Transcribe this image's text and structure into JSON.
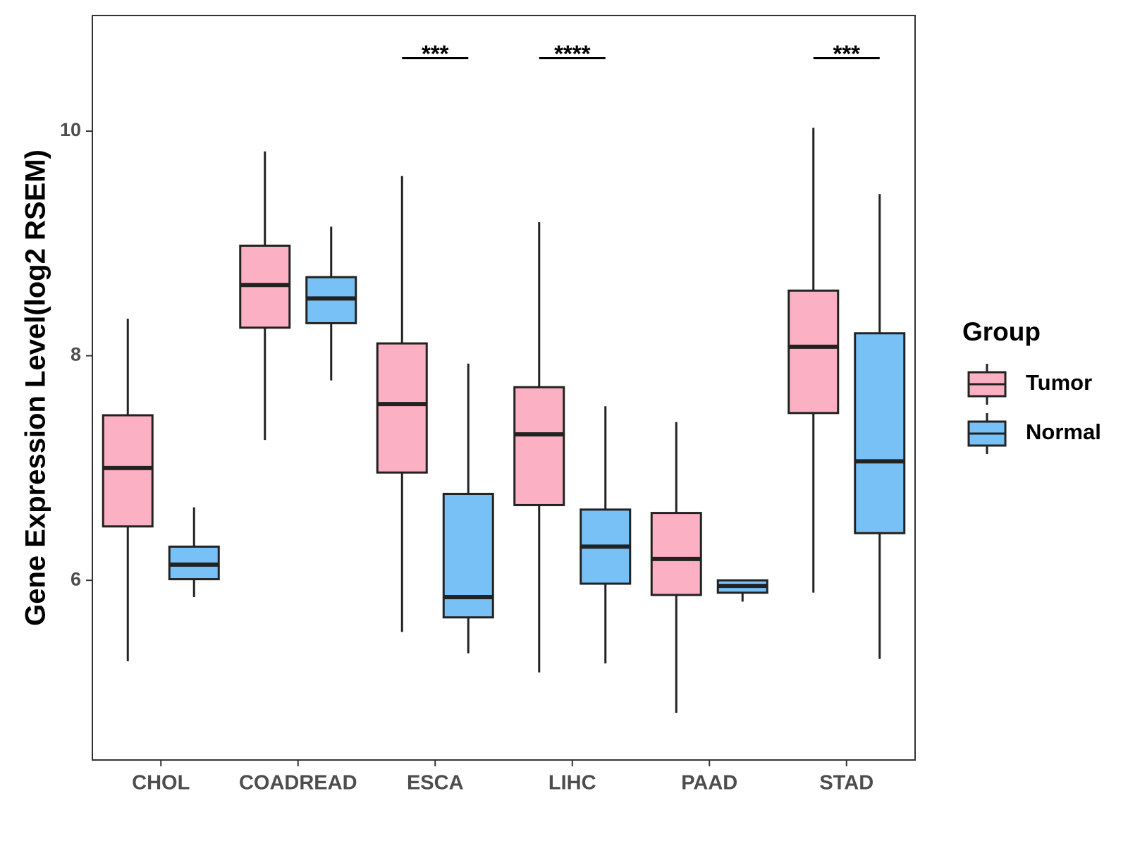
{
  "chart_data": {
    "type": "boxplot",
    "title": "",
    "xlabel": "",
    "ylabel": "Gene Expression Level(log2 RSEM)",
    "ylim": [
      4.4,
      11.03
    ],
    "yticks": [
      6,
      8,
      10
    ],
    "ytick_labels": [
      "6",
      "8",
      "10"
    ],
    "grid": false,
    "categories": [
      "CHOL",
      "COADREAD",
      "ESCA",
      "LIHC",
      "PAAD",
      "STAD"
    ],
    "legend": {
      "title": "Group",
      "position": "right",
      "entries": [
        {
          "name": "Tumor",
          "color": "#fbb0c3"
        },
        {
          "name": "Normal",
          "color": "#77c1f7"
        }
      ]
    },
    "series": [
      {
        "name": "Tumor",
        "color": "#fbb0c3",
        "boxes": [
          {
            "category": "CHOL",
            "min": 5.28,
            "q1": 6.48,
            "median": 7.0,
            "q3": 7.47,
            "max": 8.33
          },
          {
            "category": "COADREAD",
            "min": 7.25,
            "q1": 8.25,
            "median": 8.63,
            "q3": 8.98,
            "max": 9.82
          },
          {
            "category": "ESCA",
            "min": 5.54,
            "q1": 6.96,
            "median": 7.57,
            "q3": 8.11,
            "max": 9.6
          },
          {
            "category": "LIHC",
            "min": 5.18,
            "q1": 6.67,
            "median": 7.3,
            "q3": 7.72,
            "max": 9.19
          },
          {
            "category": "PAAD",
            "min": 4.82,
            "q1": 5.87,
            "median": 6.19,
            "q3": 6.6,
            "max": 7.41
          },
          {
            "category": "STAD",
            "min": 5.89,
            "q1": 7.49,
            "median": 8.08,
            "q3": 8.58,
            "max": 10.03
          }
        ]
      },
      {
        "name": "Normal",
        "color": "#77c1f7",
        "boxes": [
          {
            "category": "CHOL",
            "min": 5.85,
            "q1": 6.01,
            "median": 6.14,
            "q3": 6.3,
            "max": 6.65
          },
          {
            "category": "COADREAD",
            "min": 7.78,
            "q1": 8.29,
            "median": 8.51,
            "q3": 8.7,
            "max": 9.15
          },
          {
            "category": "ESCA",
            "min": 5.35,
            "q1": 5.67,
            "median": 5.85,
            "q3": 6.77,
            "max": 7.93
          },
          {
            "category": "LIHC",
            "min": 5.26,
            "q1": 5.97,
            "median": 6.3,
            "q3": 6.63,
            "max": 7.55
          },
          {
            "category": "PAAD",
            "min": 5.81,
            "q1": 5.89,
            "median": 5.95,
            "q3": 6.0,
            "max": 6.0
          },
          {
            "category": "STAD",
            "min": 5.3,
            "q1": 6.42,
            "median": 7.06,
            "q3": 8.2,
            "max": 9.44
          }
        ]
      }
    ],
    "annotations": [
      {
        "category": "ESCA",
        "text": "***",
        "y": 10.65
      },
      {
        "category": "LIHC",
        "text": "****",
        "y": 10.65
      },
      {
        "category": "STAD",
        "text": "***",
        "y": 10.65
      }
    ]
  }
}
